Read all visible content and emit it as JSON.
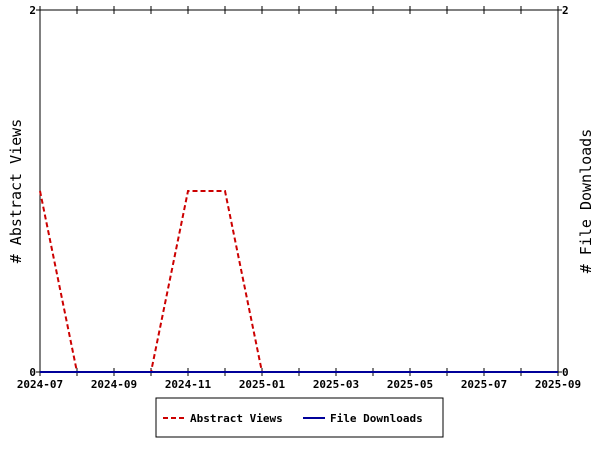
{
  "chart_data": {
    "type": "line",
    "x": [
      "2024-07",
      "2024-08",
      "2024-09",
      "2024-10",
      "2024-11",
      "2024-12",
      "2025-01",
      "2025-02",
      "2025-03",
      "2025-04",
      "2025-05",
      "2025-06",
      "2025-07",
      "2025-08",
      "2025-09"
    ],
    "x_ticks": [
      "2024-07",
      "2024-09",
      "2024-11",
      "2025-01",
      "2025-03",
      "2025-05",
      "2025-07",
      "2025-09"
    ],
    "series": [
      {
        "name": "Abstract Views",
        "axis": "left",
        "color": "#cc0000",
        "dash": "dashed",
        "values": [
          1,
          0,
          0,
          0,
          1,
          1,
          0,
          0,
          0,
          0,
          0,
          0,
          0,
          0,
          0
        ]
      },
      {
        "name": "File Downloads",
        "axis": "right",
        "color": "#000099",
        "dash": "solid",
        "values": [
          0,
          0,
          0,
          0,
          0,
          0,
          0,
          0,
          0,
          0,
          0,
          0,
          0,
          0,
          0
        ]
      }
    ],
    "y_left": {
      "label": "# Abstract Views",
      "ylim": [
        0,
        2
      ],
      "ticks": [
        "0",
        "2"
      ]
    },
    "y_right": {
      "label": "# File Downloads",
      "ylim": [
        0,
        2
      ],
      "ticks": [
        "0",
        "2"
      ]
    },
    "legend": "bottom-center",
    "grid": false
  }
}
